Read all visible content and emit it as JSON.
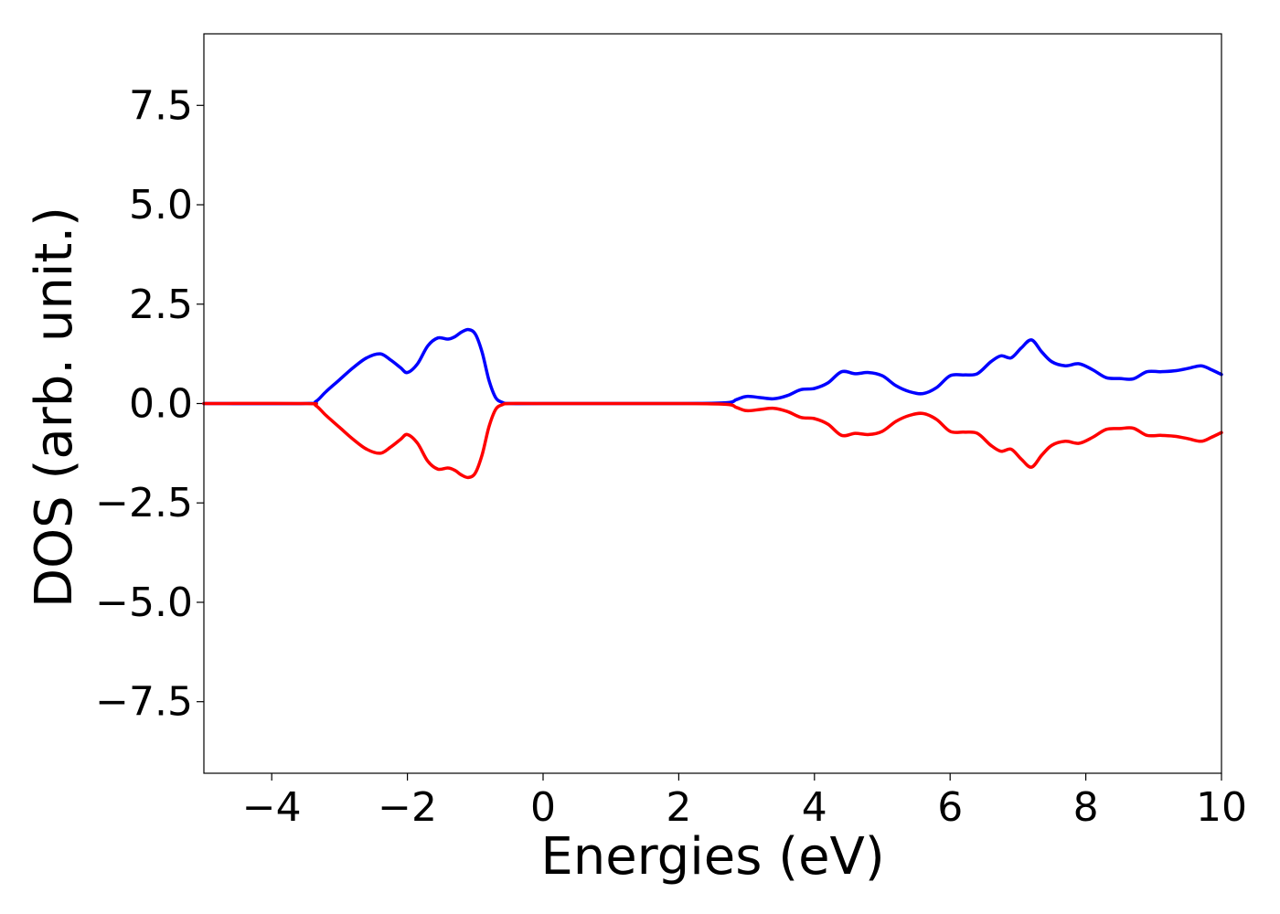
{
  "chart_data": {
    "type": "line",
    "xlabel": "Energies (eV)",
    "ylabel": "DOS (arb. unit.)",
    "xlim": [
      -5,
      10
    ],
    "ylim": [
      -9.3,
      9.3
    ],
    "x_ticks": [
      -4,
      -2,
      0,
      2,
      4,
      6,
      8,
      10
    ],
    "x_tick_labels": [
      "−4",
      "−2",
      "0",
      "2",
      "4",
      "6",
      "8",
      "10"
    ],
    "y_ticks": [
      7.5,
      5.0,
      2.5,
      0.0,
      -2.5,
      -5.0,
      -7.5
    ],
    "y_tick_labels": [
      "7.5",
      "5.0",
      "2.5",
      "0.0",
      "−2.5",
      "−5.0",
      "−7.5"
    ],
    "grid": false,
    "legend": "none",
    "series": [
      {
        "color": "#0000ff",
        "x": [
          -5.0,
          -3.5,
          -3.35,
          -3.2,
          -3.0,
          -2.8,
          -2.6,
          -2.4,
          -2.25,
          -2.1,
          -2.0,
          -1.85,
          -1.7,
          -1.55,
          -1.4,
          -1.3,
          -1.2,
          -1.1,
          -1.0,
          -0.9,
          -0.8,
          -0.7,
          -0.6,
          -0.5,
          0.0,
          2.0,
          2.7,
          2.85,
          3.0,
          3.2,
          3.4,
          3.6,
          3.8,
          4.0,
          4.2,
          4.4,
          4.6,
          4.8,
          5.0,
          5.2,
          5.4,
          5.6,
          5.8,
          6.0,
          6.2,
          6.4,
          6.6,
          6.75,
          6.9,
          7.05,
          7.2,
          7.35,
          7.5,
          7.7,
          7.9,
          8.1,
          8.3,
          8.5,
          8.7,
          8.9,
          9.1,
          9.3,
          9.5,
          9.7,
          9.85,
          10.0
        ],
        "y": [
          0.0,
          0.0,
          0.05,
          0.3,
          0.6,
          0.9,
          1.15,
          1.25,
          1.1,
          0.9,
          0.78,
          1.0,
          1.45,
          1.65,
          1.62,
          1.68,
          1.8,
          1.86,
          1.75,
          1.3,
          0.6,
          0.15,
          0.03,
          0.0,
          0.0,
          0.0,
          0.02,
          0.1,
          0.18,
          0.15,
          0.12,
          0.2,
          0.35,
          0.38,
          0.52,
          0.8,
          0.75,
          0.78,
          0.7,
          0.45,
          0.3,
          0.25,
          0.4,
          0.7,
          0.72,
          0.75,
          1.05,
          1.2,
          1.15,
          1.4,
          1.6,
          1.3,
          1.05,
          0.95,
          1.0,
          0.85,
          0.65,
          0.63,
          0.62,
          0.8,
          0.8,
          0.82,
          0.88,
          0.95,
          0.85,
          0.73
        ]
      },
      {
        "color": "#ff0000",
        "x": [
          -5.0,
          -3.5,
          -3.35,
          -3.2,
          -3.0,
          -2.8,
          -2.6,
          -2.4,
          -2.25,
          -2.1,
          -2.0,
          -1.85,
          -1.7,
          -1.55,
          -1.4,
          -1.3,
          -1.2,
          -1.1,
          -1.0,
          -0.9,
          -0.8,
          -0.7,
          -0.6,
          -0.5,
          0.0,
          2.0,
          2.7,
          2.85,
          3.0,
          3.2,
          3.4,
          3.6,
          3.8,
          4.0,
          4.2,
          4.4,
          4.6,
          4.8,
          5.0,
          5.2,
          5.4,
          5.6,
          5.8,
          6.0,
          6.2,
          6.4,
          6.6,
          6.75,
          6.9,
          7.05,
          7.2,
          7.35,
          7.5,
          7.7,
          7.9,
          8.1,
          8.3,
          8.5,
          8.7,
          8.9,
          9.1,
          9.3,
          9.5,
          9.7,
          9.85,
          10.0
        ],
        "y": [
          0.0,
          0.0,
          -0.05,
          -0.3,
          -0.6,
          -0.9,
          -1.15,
          -1.25,
          -1.1,
          -0.9,
          -0.78,
          -1.0,
          -1.45,
          -1.65,
          -1.62,
          -1.68,
          -1.8,
          -1.86,
          -1.75,
          -1.3,
          -0.6,
          -0.15,
          -0.03,
          0.0,
          0.0,
          0.0,
          -0.02,
          -0.1,
          -0.18,
          -0.15,
          -0.12,
          -0.2,
          -0.35,
          -0.38,
          -0.52,
          -0.8,
          -0.75,
          -0.78,
          -0.7,
          -0.45,
          -0.3,
          -0.25,
          -0.4,
          -0.7,
          -0.72,
          -0.75,
          -1.05,
          -1.2,
          -1.15,
          -1.4,
          -1.6,
          -1.3,
          -1.05,
          -0.95,
          -1.0,
          -0.85,
          -0.65,
          -0.63,
          -0.62,
          -0.8,
          -0.8,
          -0.82,
          -0.88,
          -0.95,
          -0.85,
          -0.73
        ]
      }
    ]
  }
}
